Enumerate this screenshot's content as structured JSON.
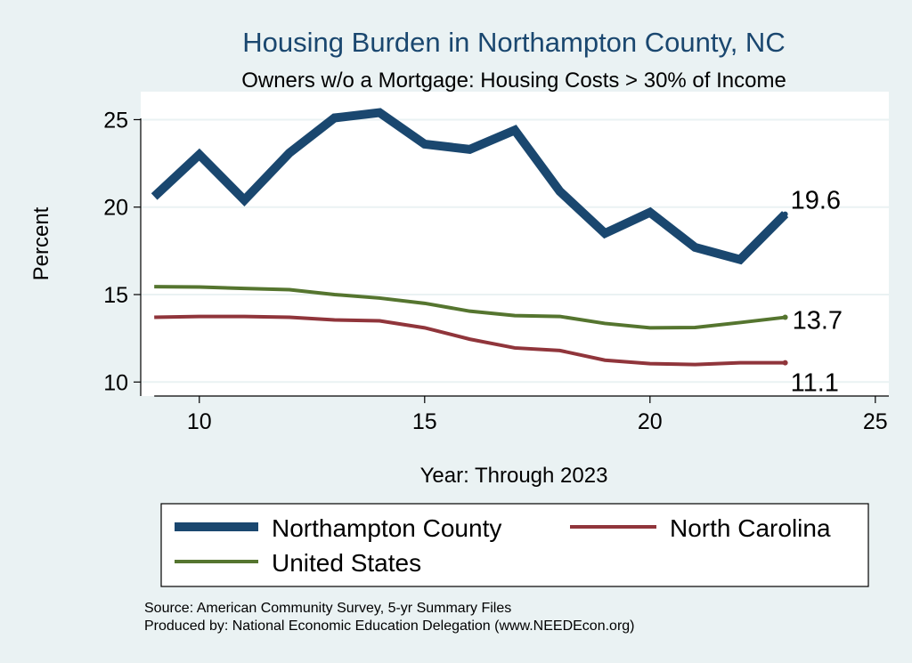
{
  "chart_data": {
    "type": "line",
    "title": "Housing Burden in Northampton County, NC",
    "subtitle": "Owners w/o a Mortgage: Housing Costs > 30% of Income",
    "xlabel": "Year: Through 2023",
    "ylabel": "Percent",
    "xlim": [
      8.7,
      25.3
    ],
    "ylim": [
      9.2,
      26.6
    ],
    "xticks": [
      10,
      15,
      20,
      25
    ],
    "yticks": [
      10,
      15,
      20,
      25
    ],
    "grid": true,
    "legend_position": "bottom",
    "x": [
      9,
      10,
      11,
      12,
      13,
      14,
      15,
      16,
      17,
      18,
      19,
      20,
      21,
      22,
      23
    ],
    "series": [
      {
        "name": "Northampton County",
        "color": "#1a476f",
        "width": "thick",
        "values": [
          20.6,
          23.0,
          20.4,
          23.1,
          25.1,
          25.4,
          23.6,
          23.3,
          24.4,
          20.9,
          18.5,
          19.7,
          17.7,
          17.0,
          19.6
        ],
        "end_label": "19.6"
      },
      {
        "name": "North Carolina",
        "color": "#90353b",
        "width": "thin",
        "values": [
          13.7,
          13.75,
          13.75,
          13.7,
          13.55,
          13.5,
          13.1,
          12.45,
          11.95,
          11.8,
          11.25,
          11.05,
          11.0,
          11.1,
          11.1
        ],
        "end_label": "11.1"
      },
      {
        "name": "United States",
        "color": "#55752f",
        "width": "thin",
        "values": [
          15.45,
          15.43,
          15.35,
          15.28,
          15.0,
          14.8,
          14.5,
          14.05,
          13.8,
          13.75,
          13.35,
          13.1,
          13.12,
          13.4,
          13.7
        ],
        "end_label": "13.7"
      }
    ],
    "notes": [
      "Source: American Community Survey, 5-yr Summary Files",
      "Produced by: National Economic Education Delegation (www.NEEDEcon.org)"
    ]
  }
}
